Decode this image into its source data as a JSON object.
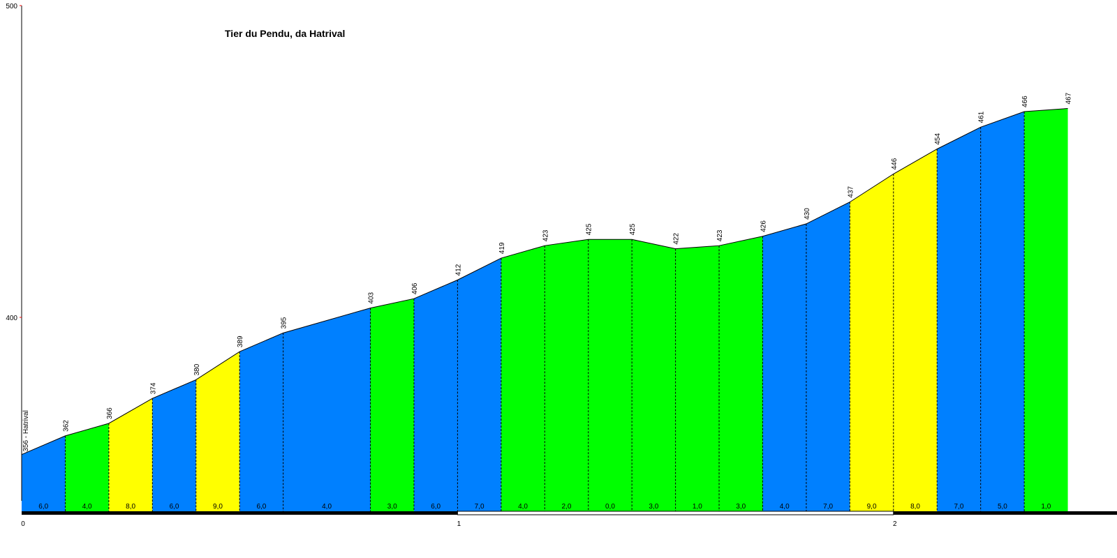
{
  "chart_data": {
    "type": "area",
    "title": "Tier du Pendu, da Hatrival",
    "start_label": "356 - Hatrival",
    "y_ticks": [
      "400",
      "500"
    ],
    "ylim": [
      337,
      500
    ],
    "x_ticks": [
      "0",
      "1",
      "2"
    ],
    "xlim": [
      0,
      2.5
    ],
    "segment_length": 0.1,
    "distance": [
      0,
      0.1,
      0.2,
      0.3,
      0.4,
      0.5,
      0.6,
      0.8,
      0.9,
      1.0,
      1.1,
      1.2,
      1.3,
      1.4,
      1.5,
      1.6,
      1.7,
      1.8,
      1.9,
      2.0,
      2.1,
      2.2,
      2.3,
      2.4
    ],
    "elevation": [
      356,
      362,
      366,
      374,
      380,
      389,
      395,
      403,
      406,
      412,
      419,
      423,
      425,
      425,
      422,
      423,
      426,
      430,
      437,
      446,
      454,
      461,
      466,
      467
    ],
    "elevation_labels": [
      "362",
      "366",
      "374",
      "380",
      "389",
      "395",
      "403",
      "406",
      "412",
      "419",
      "423",
      "425",
      "425",
      "422",
      "423",
      "426",
      "430",
      "437",
      "446",
      "454",
      "461",
      "466",
      "467"
    ],
    "gradients": [
      "6,0",
      "4,0",
      "8,0",
      "6,0",
      "9,0",
      "6,0",
      "4,0",
      "3,0",
      "6,0",
      "7,0",
      "4,0",
      "2,0",
      "0,0",
      "3,0",
      "1,0",
      "3,0",
      "4,0",
      "7,0",
      "9,0",
      "8,0",
      "7,0",
      "5,0",
      "1,0"
    ],
    "segment_colors": [
      "#0080ff",
      "#00ff00",
      "#ffff00",
      "#0080ff",
      "#ffff00",
      "#0080ff",
      "#0080ff",
      "#00ff00",
      "#0080ff",
      "#0080ff",
      "#00ff00",
      "#00ff00",
      "#00ff00",
      "#00ff00",
      "#00ff00",
      "#00ff00",
      "#0080ff",
      "#0080ff",
      "#ffff00",
      "#ffff00",
      "#0080ff",
      "#0080ff",
      "#00ff00"
    ],
    "colors": {
      "blue": "#0080ff",
      "green": "#00ff00",
      "yellow": "#ffff00",
      "axis_tick": "#ff0000"
    },
    "grid": false
  }
}
